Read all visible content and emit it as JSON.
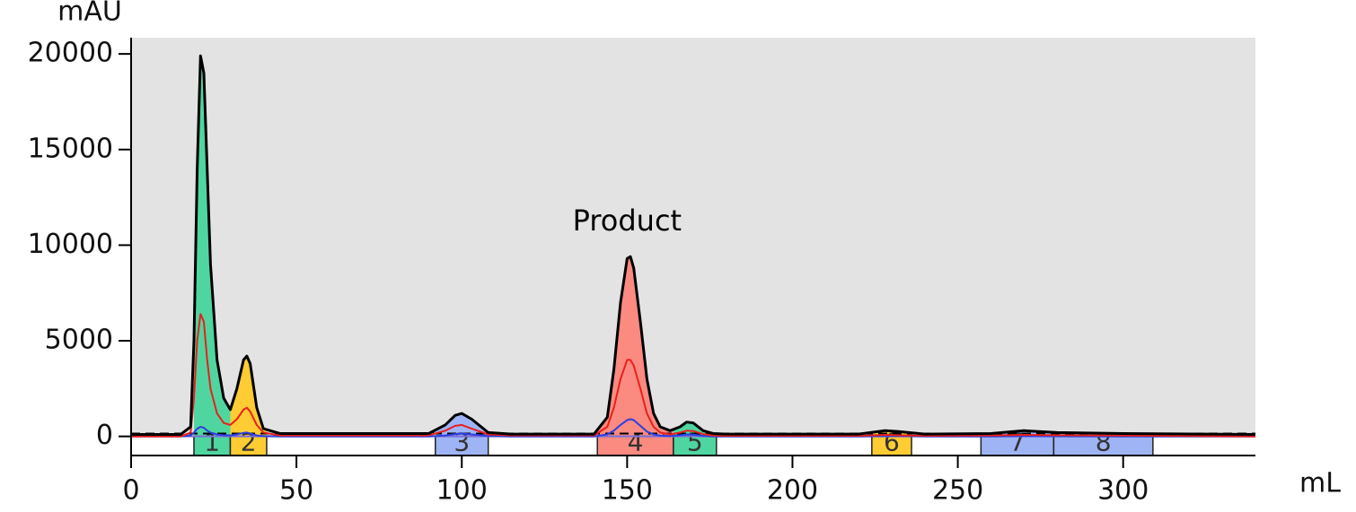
{
  "chart_data": {
    "type": "line",
    "y_label": "mAU",
    "x_label": "mL",
    "xlim": [
      0,
      340
    ],
    "ylim": [
      -1000,
      20850
    ],
    "xticks": [
      0,
      50,
      100,
      150,
      200,
      250,
      300
    ],
    "yticks": [
      0,
      5000,
      10000,
      15000,
      20000
    ],
    "threshold": 150,
    "x": [
      0,
      15,
      18,
      19,
      20,
      21,
      22,
      23,
      24,
      26,
      28,
      30,
      32,
      34,
      35,
      36,
      38,
      40,
      45,
      90,
      95,
      98,
      100,
      103,
      108,
      115,
      140,
      144,
      146,
      148,
      150,
      151,
      152,
      154,
      156,
      158,
      160,
      163,
      166,
      168,
      170,
      173,
      176,
      180,
      220,
      228,
      232,
      240,
      260,
      270,
      280,
      300,
      340
    ],
    "series": [
      {
        "color": "#000000",
        "values": [
          100,
          100,
          500,
          5000,
          14000,
          19900,
          19000,
          14000,
          9000,
          4000,
          2000,
          1400,
          2500,
          4000,
          4200,
          3800,
          1500,
          400,
          150,
          150,
          600,
          1100,
          1200,
          900,
          200,
          120,
          120,
          1000,
          3500,
          7000,
          9300,
          9400,
          8800,
          6000,
          3000,
          1200,
          500,
          300,
          500,
          750,
          700,
          300,
          150,
          120,
          120,
          300,
          250,
          120,
          150,
          300,
          200,
          150,
          100
        ]
      },
      {
        "color": "#e8201c",
        "values": [
          0,
          0,
          200,
          2000,
          5000,
          6400,
          6000,
          4000,
          2500,
          1200,
          700,
          600,
          900,
          1400,
          1500,
          1300,
          600,
          200,
          50,
          50,
          300,
          550,
          600,
          400,
          100,
          50,
          50,
          500,
          1500,
          3000,
          4000,
          4000,
          3700,
          2500,
          1200,
          500,
          200,
          100,
          200,
          300,
          280,
          120,
          50,
          30,
          30,
          80,
          60,
          30,
          50,
          80,
          60,
          40,
          0
        ]
      },
      {
        "color": "#2c3fe0",
        "values": [
          0,
          0,
          50,
          200,
          400,
          500,
          450,
          300,
          200,
          100,
          60,
          50,
          100,
          180,
          200,
          150,
          50,
          20,
          0,
          0,
          50,
          120,
          150,
          100,
          20,
          0,
          0,
          100,
          300,
          600,
          850,
          900,
          850,
          550,
          250,
          100,
          40,
          20,
          60,
          100,
          90,
          30,
          0,
          0,
          0,
          20,
          20,
          0,
          0,
          20,
          10,
          0,
          0
        ]
      }
    ],
    "fractions": [
      {
        "label": "1",
        "start": 19,
        "end": 30,
        "color": "#4fd6a0"
      },
      {
        "label": "2",
        "start": 30,
        "end": 41,
        "color": "#ffcc33"
      },
      {
        "label": "3",
        "start": 92,
        "end": 108,
        "color": "#9fb4f5"
      },
      {
        "label": "4",
        "start": 141,
        "end": 164,
        "color": "#fb8a80"
      },
      {
        "label": "5",
        "start": 164,
        "end": 177,
        "color": "#4fd6a0"
      },
      {
        "label": "6",
        "start": 224,
        "end": 236,
        "color": "#ffcc33"
      },
      {
        "label": "7",
        "start": 257,
        "end": 279,
        "color": "#9fb4f5"
      },
      {
        "label": "8",
        "start": 279,
        "end": 309,
        "color": "#9fb4f5"
      }
    ],
    "annotation": {
      "text": "Product",
      "x": 150,
      "y": 11200
    }
  }
}
